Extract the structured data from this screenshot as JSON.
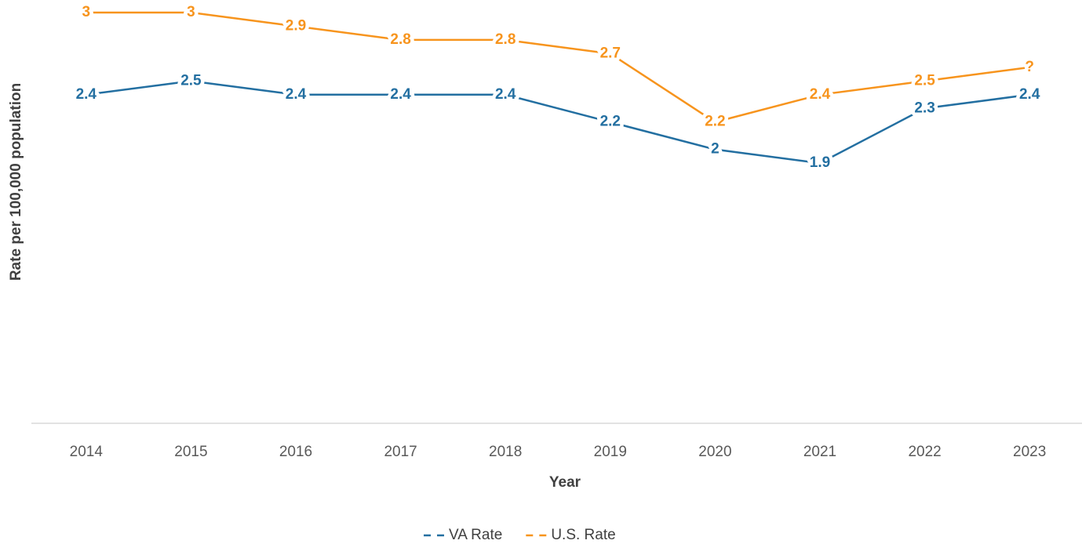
{
  "chart_data": {
    "type": "line",
    "x_label": "Year",
    "y_label": "Rate per 100,000 population",
    "categories": [
      "2014",
      "2015",
      "2016",
      "2017",
      "2018",
      "2019",
      "2020",
      "2021",
      "2022",
      "2023"
    ],
    "series": [
      {
        "name": "VA Rate",
        "color": "#236fa1",
        "values": [
          2.4,
          2.5,
          2.4,
          2.4,
          2.4,
          2.2,
          2,
          1.9,
          2.3,
          2.4
        ]
      },
      {
        "name": "U.S. Rate",
        "color": "#f7941d",
        "values": [
          3,
          3,
          2.9,
          2.8,
          2.8,
          2.7,
          2.2,
          2.4,
          2.5,
          2.6
        ],
        "value_labels": [
          "3",
          "3",
          "2.9",
          "2.8",
          "2.8",
          "2.7",
          "2.2",
          "2.4",
          "2.5",
          "?"
        ]
      }
    ],
    "ylim": [
      0,
      3
    ],
    "legend": "bottom"
  }
}
